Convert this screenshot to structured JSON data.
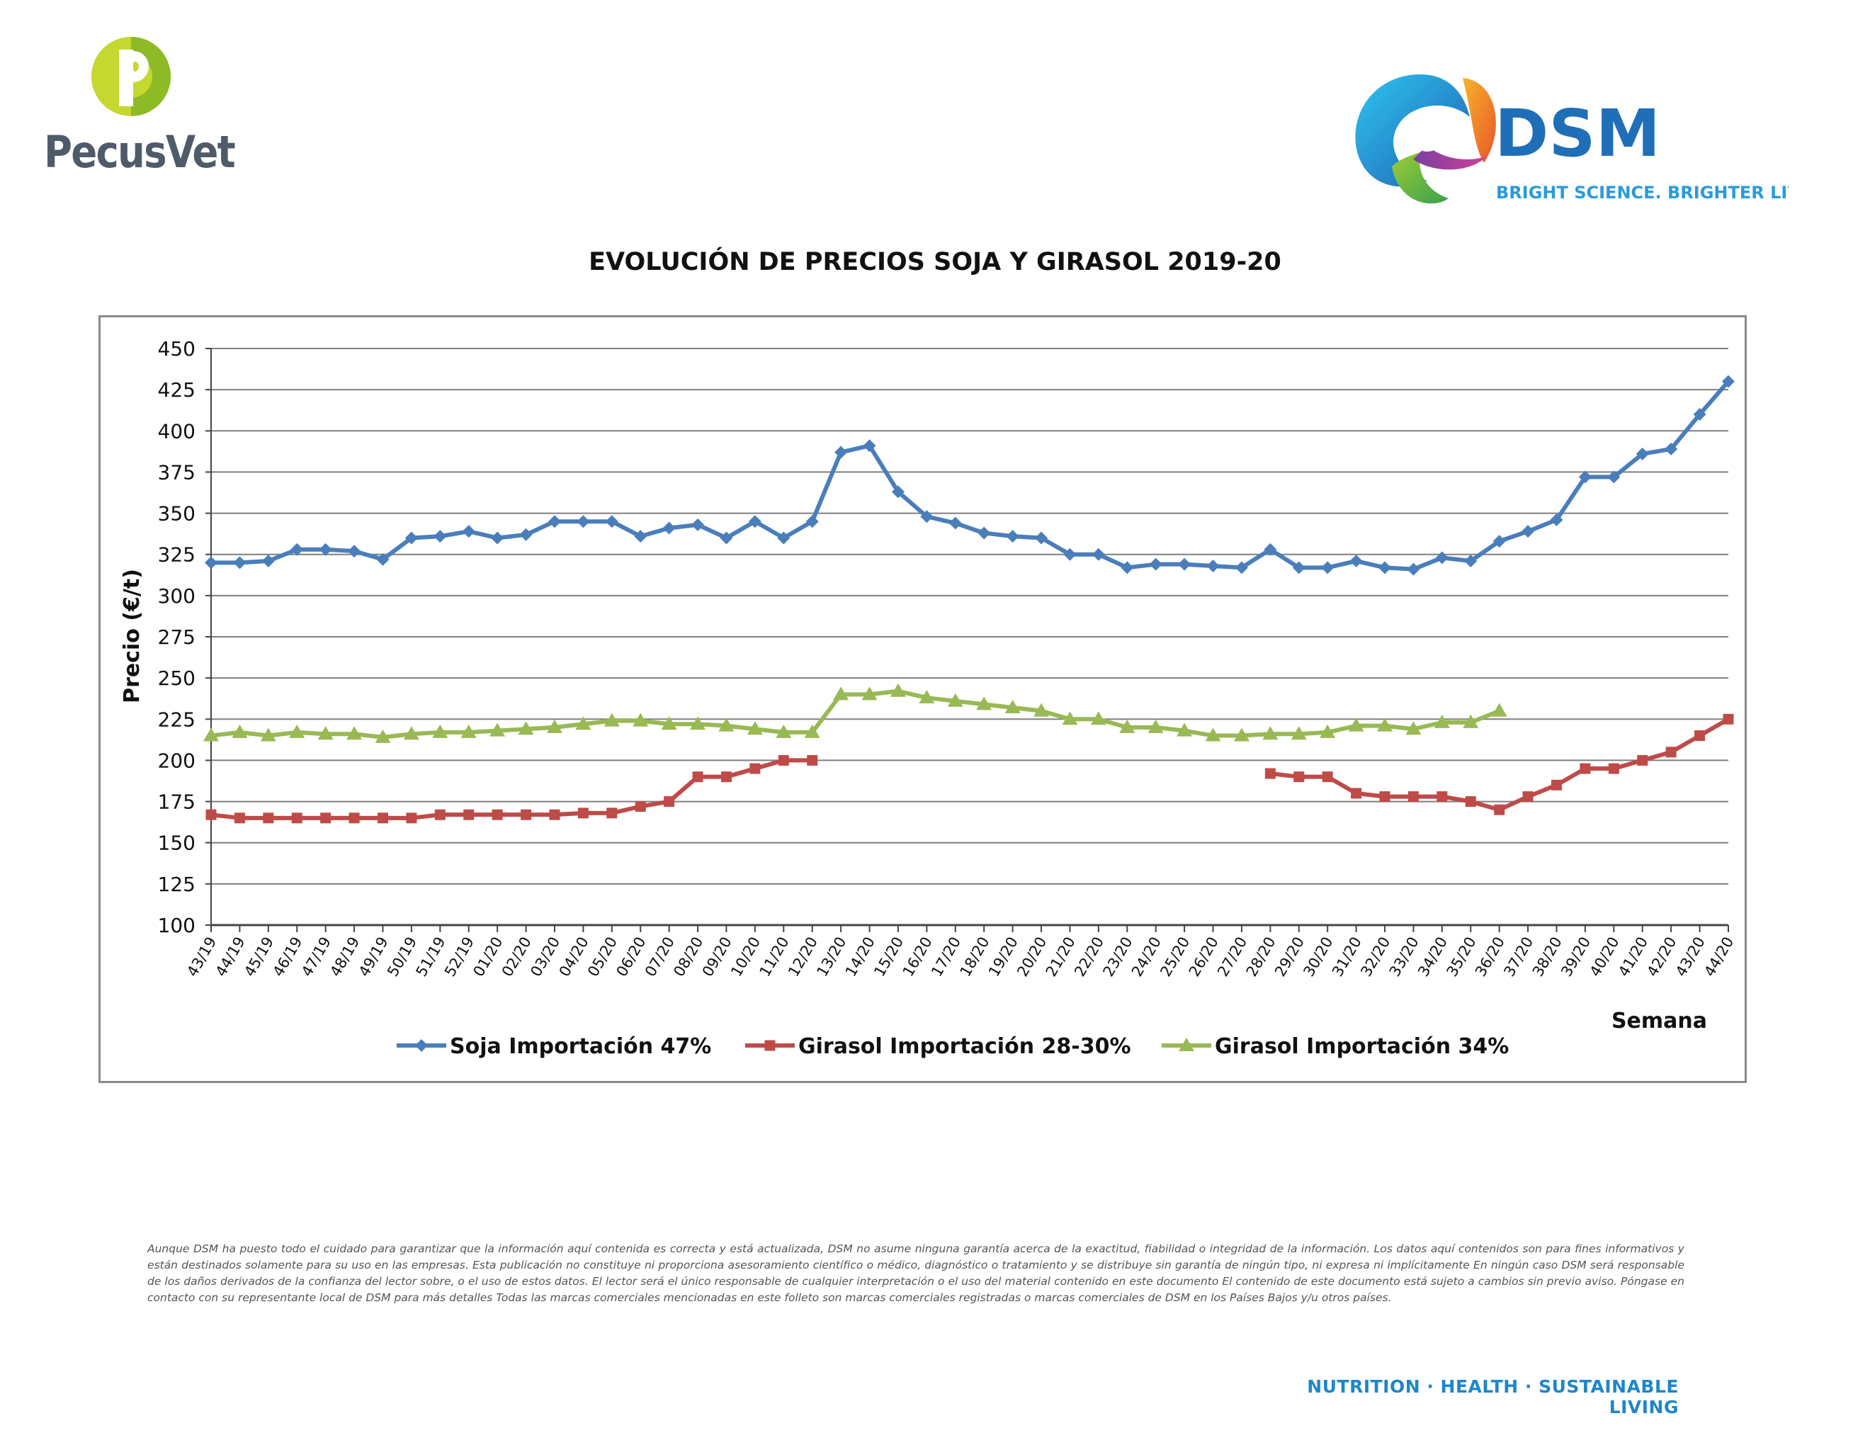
{
  "header": {
    "left_logo": {
      "name": "PecusVet",
      "colors": [
        "#8dbb25",
        "#c5d82f",
        "#4f5b69"
      ]
    },
    "right_logo": {
      "name": "DSM",
      "tagline": "BRIGHT SCIENCE. BRIGHTER LIVING.",
      "colors": [
        "#1f6fb8",
        "#2b9bd8"
      ]
    }
  },
  "chart_data": {
    "type": "line",
    "title": "EVOLUCIÓN DE PRECIOS SOJA Y GIRASOL 2019-20",
    "xlabel": "Semana",
    "ylabel": "Precio (€/t)",
    "ylim": [
      100,
      450
    ],
    "yticks": [
      100,
      125,
      150,
      175,
      200,
      225,
      250,
      275,
      300,
      325,
      350,
      375,
      400,
      425,
      450
    ],
    "grid": true,
    "legend_position": "bottom",
    "categories": [
      "43/19",
      "44/19",
      "45/19",
      "46/19",
      "47/19",
      "48/19",
      "49/19",
      "50/19",
      "51/19",
      "52/19",
      "01/20",
      "02/20",
      "03/20",
      "04/20",
      "05/20",
      "06/20",
      "07/20",
      "08/20",
      "09/20",
      "10/20",
      "11/20",
      "12/20",
      "13/20",
      "14/20",
      "15/20",
      "16/20",
      "17/20",
      "18/20",
      "19/20",
      "20/20",
      "21/20",
      "22/20",
      "23/20",
      "24/20",
      "25/20",
      "26/20",
      "27/20",
      "28/20",
      "29/20",
      "30/20",
      "31/20",
      "32/20",
      "33/20",
      "34/20",
      "35/20",
      "36/20",
      "37/20",
      "38/20",
      "39/20",
      "40/20",
      "41/20",
      "42/20",
      "43/20",
      "44/20"
    ],
    "series": [
      {
        "name": "Soja Importación 47%",
        "color": "#4a7ebb",
        "marker": "diamond",
        "values": [
          320,
          320,
          321,
          328,
          328,
          327,
          322,
          335,
          336,
          339,
          335,
          337,
          345,
          345,
          345,
          336,
          341,
          343,
          335,
          345,
          335,
          345,
          387,
          391,
          363,
          348,
          344,
          338,
          336,
          335,
          325,
          325,
          317,
          319,
          319,
          318,
          317,
          328,
          317,
          317,
          321,
          317,
          316,
          323,
          321,
          333,
          339,
          346,
          372,
          372,
          386,
          389,
          410,
          430
        ]
      },
      {
        "name": "Girasol Importación 28-30%",
        "color": "#be4b48",
        "marker": "square",
        "values": [
          167,
          165,
          165,
          165,
          165,
          165,
          165,
          165,
          167,
          167,
          167,
          167,
          167,
          168,
          168,
          172,
          175,
          190,
          190,
          195,
          200,
          200,
          null,
          null,
          null,
          null,
          null,
          null,
          null,
          null,
          null,
          null,
          null,
          null,
          null,
          null,
          null,
          192,
          190,
          190,
          180,
          178,
          178,
          178,
          175,
          170,
          178,
          185,
          195,
          195,
          200,
          205,
          215,
          225
        ]
      },
      {
        "name": "Girasol Importación 34%",
        "color": "#98b954",
        "marker": "triangle",
        "values": [
          215,
          217,
          215,
          217,
          216,
          216,
          214,
          216,
          217,
          217,
          218,
          219,
          220,
          222,
          224,
          224,
          222,
          222,
          221,
          219,
          217,
          217,
          240,
          240,
          242,
          238,
          236,
          234,
          232,
          230,
          225,
          225,
          220,
          220,
          218,
          215,
          215,
          216,
          216,
          217,
          221,
          221,
          219,
          223,
          223,
          230,
          null,
          null,
          null,
          null,
          null,
          null,
          null,
          null
        ]
      }
    ]
  },
  "disclaimer": "Aunque DSM ha puesto todo el cuidado para garantizar que la información aquí contenida es correcta y está actualizada, DSM no asume ninguna garantía acerca de la exactitud, fiabilidad o integridad de la información. Los datos aquí contenidos son para fines informativos y están destinados solamente para su uso en las empresas. Esta publicación no constituye ni proporciona asesoramiento científico o médico, diagnóstico o tratamiento y se distribuye sin garantía de ningún tipo, ni expresa ni implícitamente En ningún caso DSM será responsable de los daños derivados de la confianza del lector sobre, o el uso de estos datos. El lector será el único responsable de cualquier interpretación o el uso del material contenido en este documento El contenido de este documento está sujeto a cambios sin previo aviso. Póngase en contacto con su representante local de DSM para más detalles Todas las marcas comerciales mencionadas en este folleto son marcas comerciales registradas o marcas comerciales de DSM en los Países Bajos y/u otros países.",
  "footer": {
    "tagline": "NUTRITION · HEALTH · SUSTAINABLE LIVING"
  }
}
